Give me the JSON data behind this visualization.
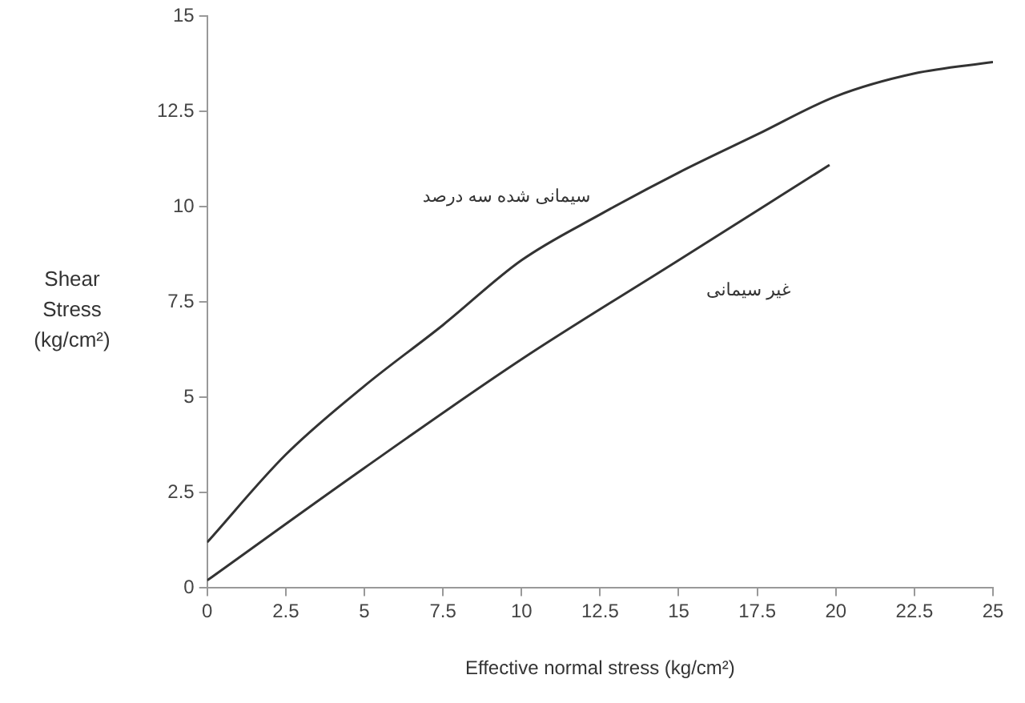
{
  "chart_data": {
    "type": "line",
    "xlabel": "Effective normal stress (kg/cm²)",
    "ylabel": "Shear Stress (kg/cm²)",
    "xlim": [
      0,
      25
    ],
    "xticks": [
      0,
      2.5,
      5,
      7.5,
      10,
      12.5,
      15,
      17.5,
      20,
      22.5,
      25
    ],
    "ylim": [
      0,
      15
    ],
    "yticks": [
      0,
      2.5,
      5,
      7.5,
      10,
      12.5,
      15
    ],
    "grid": false,
    "legend": false,
    "marker": "none",
    "line_style": "solid",
    "series": [
      {
        "name": "سیمانی شده سه درصد",
        "color": "#333333",
        "x": [
          0,
          2.5,
          5,
          7.5,
          10,
          12.5,
          15,
          17.5,
          20,
          22.5,
          25
        ],
        "values": [
          1.2,
          3.5,
          5.3,
          6.9,
          8.6,
          9.8,
          10.9,
          11.9,
          12.9,
          13.5,
          13.8
        ]
      },
      {
        "name": "غیر سیمانی",
        "color": "#333333",
        "x": [
          0,
          5,
          10,
          15,
          19.8
        ],
        "values": [
          0.2,
          3.15,
          6.0,
          8.6,
          11.1
        ]
      }
    ]
  }
}
